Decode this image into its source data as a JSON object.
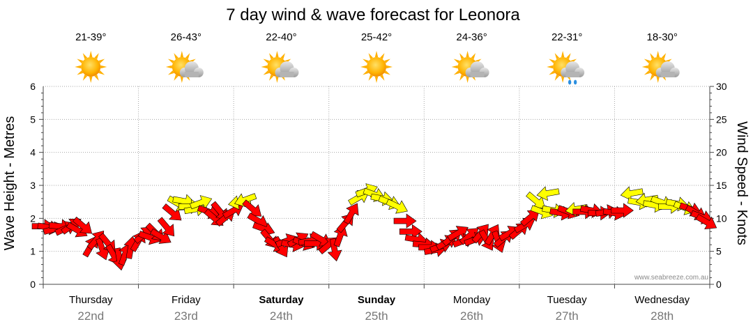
{
  "title": "7 day wind & wave forecast for Leonora",
  "credit": "www.seabreeze.com.au",
  "colors": {
    "strong_wind": "#ff0000",
    "moderate_wind": "#ffff00",
    "grid": "#a6a6a6"
  },
  "days": [
    {
      "day": "Thursday",
      "date": "22nd",
      "temp": "21-39°",
      "icon": "sunny-icon",
      "bold": false
    },
    {
      "day": "Friday",
      "date": "23rd",
      "temp": "26-43°",
      "icon": "partly-cloudy-icon",
      "bold": false
    },
    {
      "day": "Saturday",
      "date": "24th",
      "temp": "22-40°",
      "icon": "partly-cloudy-icon",
      "bold": true
    },
    {
      "day": "Sunday",
      "date": "25th",
      "temp": "25-42°",
      "icon": "sunny-icon",
      "bold": true
    },
    {
      "day": "Monday",
      "date": "26th",
      "temp": "24-36°",
      "icon": "partly-cloudy-icon",
      "bold": false
    },
    {
      "day": "Tuesday",
      "date": "27th",
      "temp": "22-31°",
      "icon": "shower-icon",
      "bold": false
    },
    {
      "day": "Wednesday",
      "date": "28th",
      "temp": "18-30°",
      "icon": "partly-cloudy-icon",
      "bold": false
    }
  ],
  "chart_data": {
    "type": "scatter",
    "title": "7 day wind & wave forecast for Leonora",
    "ylabel_left": "Wave Height - Metres",
    "ylabel_right": "Wind Speed - Knots",
    "ylim_left": [
      0,
      6
    ],
    "ylim_right": [
      0,
      30
    ],
    "yticks_left": [
      "0",
      "1",
      "2",
      "3",
      "4",
      "5",
      "6"
    ],
    "yticks_right": [
      "0",
      "5",
      "10",
      "15",
      "20",
      "25",
      "30"
    ],
    "x_categories": [
      "Thursday 22nd",
      "Friday 23rd",
      "Saturday 24th",
      "Sunday 25th",
      "Monday 26th",
      "Tuesday 27th",
      "Wednesday 28th"
    ],
    "grid": true,
    "series": [
      {
        "marker": "wind-arrow",
        "points": [
          {
            "day": 0,
            "frac": 0.0,
            "knots": 8.8,
            "rot": 0,
            "color": "red"
          },
          {
            "day": 0,
            "frac": 0.06,
            "knots": 8.6,
            "rot": 10,
            "color": "red"
          },
          {
            "day": 0,
            "frac": 0.12,
            "knots": 8.4,
            "rot": -15,
            "color": "red"
          },
          {
            "day": 0,
            "frac": 0.18,
            "knots": 8.8,
            "rot": 5,
            "color": "red"
          },
          {
            "day": 0,
            "frac": 0.24,
            "knots": 8.5,
            "rot": -25,
            "color": "red"
          },
          {
            "day": 0,
            "frac": 0.3,
            "knots": 8.9,
            "rot": -35,
            "color": "red"
          },
          {
            "day": 0,
            "frac": 0.36,
            "knots": 8.2,
            "rot": 30,
            "color": "red"
          },
          {
            "day": 0,
            "frac": 0.42,
            "knots": 8.8,
            "rot": 40,
            "color": "red"
          },
          {
            "day": 0,
            "frac": 0.5,
            "knots": 5.8,
            "rot": -60,
            "color": "red"
          },
          {
            "day": 0,
            "frac": 0.56,
            "knots": 6.8,
            "rot": -50,
            "color": "red"
          },
          {
            "day": 0,
            "frac": 0.62,
            "knots": 5.3,
            "rot": 70,
            "color": "red"
          },
          {
            "day": 0,
            "frac": 0.68,
            "knots": 6.2,
            "rot": 50,
            "color": "red"
          },
          {
            "day": 0,
            "frac": 0.74,
            "knots": 4.4,
            "rot": 60,
            "color": "red"
          },
          {
            "day": 0,
            "frac": 0.8,
            "knots": 3.8,
            "rot": 80,
            "color": "red"
          },
          {
            "day": 0,
            "frac": 0.86,
            "knots": 4.6,
            "rot": -70,
            "color": "red"
          },
          {
            "day": 0,
            "frac": 0.92,
            "knots": 5.6,
            "rot": -80,
            "color": "red"
          },
          {
            "day": 1,
            "frac": 0.0,
            "knots": 6.6,
            "rot": -60,
            "color": "red"
          },
          {
            "day": 1,
            "frac": 0.06,
            "knots": 7.6,
            "rot": -40,
            "color": "red"
          },
          {
            "day": 1,
            "frac": 0.12,
            "knots": 7.1,
            "rot": 20,
            "color": "red"
          },
          {
            "day": 1,
            "frac": 0.18,
            "knots": 7.8,
            "rot": 45,
            "color": "red"
          },
          {
            "day": 1,
            "frac": 0.24,
            "knots": 7.2,
            "rot": 30,
            "color": "red"
          },
          {
            "day": 1,
            "frac": 0.3,
            "knots": 8.6,
            "rot": 50,
            "color": "red"
          },
          {
            "day": 1,
            "frac": 0.36,
            "knots": 10.8,
            "rot": 40,
            "color": "red"
          },
          {
            "day": 1,
            "frac": 0.42,
            "knots": 12.2,
            "rot": 30,
            "color": "yellow"
          },
          {
            "day": 1,
            "frac": 0.48,
            "knots": 12.6,
            "rot": 10,
            "color": "yellow"
          },
          {
            "day": 1,
            "frac": 0.54,
            "knots": 11.8,
            "rot": 0,
            "color": "yellow"
          },
          {
            "day": 1,
            "frac": 0.6,
            "knots": 11.4,
            "rot": -10,
            "color": "yellow"
          },
          {
            "day": 1,
            "frac": 0.66,
            "knots": 12.4,
            "rot": -20,
            "color": "yellow"
          },
          {
            "day": 1,
            "frac": 0.74,
            "knots": 11.0,
            "rot": 20,
            "color": "red"
          },
          {
            "day": 1,
            "frac": 0.8,
            "knots": 10.0,
            "rot": 40,
            "color": "red"
          },
          {
            "day": 1,
            "frac": 0.86,
            "knots": 11.0,
            "rot": 50,
            "color": "red"
          },
          {
            "day": 1,
            "frac": 0.92,
            "knots": 10.2,
            "rot": -40,
            "color": "red"
          },
          {
            "day": 2,
            "frac": 0.0,
            "knots": 11.2,
            "rot": -30,
            "color": "red"
          },
          {
            "day": 2,
            "frac": 0.06,
            "knots": 12.4,
            "rot": 170,
            "color": "yellow"
          },
          {
            "day": 2,
            "frac": 0.12,
            "knots": 12.8,
            "rot": 160,
            "color": "yellow"
          },
          {
            "day": 2,
            "frac": 0.2,
            "knots": 11.4,
            "rot": 40,
            "color": "red"
          },
          {
            "day": 2,
            "frac": 0.26,
            "knots": 9.6,
            "rot": 30,
            "color": "red"
          },
          {
            "day": 2,
            "frac": 0.32,
            "knots": 8.4,
            "rot": 20,
            "color": "red"
          },
          {
            "day": 2,
            "frac": 0.38,
            "knots": 6.8,
            "rot": 50,
            "color": "red"
          },
          {
            "day": 2,
            "frac": 0.44,
            "knots": 6.0,
            "rot": 30,
            "color": "red"
          },
          {
            "day": 2,
            "frac": 0.5,
            "knots": 5.6,
            "rot": 60,
            "color": "red"
          },
          {
            "day": 2,
            "frac": 0.56,
            "knots": 6.6,
            "rot": -20,
            "color": "red"
          },
          {
            "day": 2,
            "frac": 0.62,
            "knots": 6.0,
            "rot": 10,
            "color": "red"
          },
          {
            "day": 2,
            "frac": 0.68,
            "knots": 6.8,
            "rot": -30,
            "color": "red"
          },
          {
            "day": 2,
            "frac": 0.74,
            "knots": 6.2,
            "rot": 20,
            "color": "red"
          },
          {
            "day": 2,
            "frac": 0.8,
            "knots": 6.6,
            "rot": -10,
            "color": "red"
          },
          {
            "day": 2,
            "frac": 0.86,
            "knots": 6.2,
            "rot": 0,
            "color": "red"
          },
          {
            "day": 2,
            "frac": 0.92,
            "knots": 6.8,
            "rot": 30,
            "color": "red"
          },
          {
            "day": 3,
            "frac": 0.0,
            "knots": 6.0,
            "rot": -40,
            "color": "red"
          },
          {
            "day": 3,
            "frac": 0.06,
            "knots": 5.2,
            "rot": 80,
            "color": "red"
          },
          {
            "day": 3,
            "frac": 0.12,
            "knots": 7.4,
            "rot": -70,
            "color": "red"
          },
          {
            "day": 3,
            "frac": 0.18,
            "knots": 9.4,
            "rot": -50,
            "color": "red"
          },
          {
            "day": 3,
            "frac": 0.24,
            "knots": 10.8,
            "rot": -60,
            "color": "red"
          },
          {
            "day": 3,
            "frac": 0.32,
            "knots": 13.2,
            "rot": -30,
            "color": "yellow"
          },
          {
            "day": 3,
            "frac": 0.4,
            "knots": 14.2,
            "rot": -20,
            "color": "yellow"
          },
          {
            "day": 3,
            "frac": 0.48,
            "knots": 13.6,
            "rot": 20,
            "color": "yellow"
          },
          {
            "day": 3,
            "frac": 0.56,
            "knots": 13.0,
            "rot": 10,
            "color": "yellow"
          },
          {
            "day": 3,
            "frac": 0.64,
            "knots": 12.4,
            "rot": 20,
            "color": "yellow"
          },
          {
            "day": 3,
            "frac": 0.72,
            "knots": 11.8,
            "rot": 25,
            "color": "yellow"
          },
          {
            "day": 3,
            "frac": 0.8,
            "knots": 9.6,
            "rot": 0,
            "color": "red"
          },
          {
            "day": 3,
            "frac": 0.86,
            "knots": 8.0,
            "rot": 0,
            "color": "red"
          },
          {
            "day": 3,
            "frac": 0.92,
            "knots": 6.8,
            "rot": 10,
            "color": "red"
          },
          {
            "day": 4,
            "frac": 0.0,
            "knots": 6.0,
            "rot": 5,
            "color": "red"
          },
          {
            "day": 4,
            "frac": 0.06,
            "knots": 5.6,
            "rot": 0,
            "color": "red"
          },
          {
            "day": 4,
            "frac": 0.12,
            "knots": 5.2,
            "rot": -10,
            "color": "red"
          },
          {
            "day": 4,
            "frac": 0.18,
            "knots": 5.8,
            "rot": -20,
            "color": "red"
          },
          {
            "day": 4,
            "frac": 0.24,
            "knots": 6.4,
            "rot": -30,
            "color": "red"
          },
          {
            "day": 4,
            "frac": 0.3,
            "knots": 7.2,
            "rot": -40,
            "color": "red"
          },
          {
            "day": 4,
            "frac": 0.36,
            "knots": 7.8,
            "rot": -30,
            "color": "red"
          },
          {
            "day": 4,
            "frac": 0.42,
            "knots": 6.6,
            "rot": -20,
            "color": "red"
          },
          {
            "day": 4,
            "frac": 0.48,
            "knots": 7.4,
            "rot": -40,
            "color": "red"
          },
          {
            "day": 4,
            "frac": 0.54,
            "knots": 6.8,
            "rot": -20,
            "color": "red"
          },
          {
            "day": 4,
            "frac": 0.6,
            "knots": 7.8,
            "rot": -50,
            "color": "red"
          },
          {
            "day": 4,
            "frac": 0.66,
            "knots": 6.6,
            "rot": 60,
            "color": "red"
          },
          {
            "day": 4,
            "frac": 0.72,
            "knots": 7.6,
            "rot": -60,
            "color": "red"
          },
          {
            "day": 4,
            "frac": 0.78,
            "knots": 6.4,
            "rot": 70,
            "color": "red"
          },
          {
            "day": 4,
            "frac": 0.84,
            "knots": 7.0,
            "rot": -40,
            "color": "red"
          },
          {
            "day": 4,
            "frac": 0.9,
            "knots": 7.8,
            "rot": -30,
            "color": "red"
          },
          {
            "day": 5,
            "frac": 0.0,
            "knots": 8.2,
            "rot": -40,
            "color": "red"
          },
          {
            "day": 5,
            "frac": 0.06,
            "knots": 9.0,
            "rot": -30,
            "color": "red"
          },
          {
            "day": 5,
            "frac": 0.12,
            "knots": 10.2,
            "rot": -40,
            "color": "red"
          },
          {
            "day": 5,
            "frac": 0.18,
            "knots": 12.6,
            "rot": 40,
            "color": "yellow"
          },
          {
            "day": 5,
            "frac": 0.24,
            "knots": 11.0,
            "rot": 20,
            "color": "yellow"
          },
          {
            "day": 5,
            "frac": 0.3,
            "knots": 13.8,
            "rot": 170,
            "color": "yellow"
          },
          {
            "day": 5,
            "frac": 0.36,
            "knots": 11.2,
            "rot": 10,
            "color": "yellow"
          },
          {
            "day": 5,
            "frac": 0.44,
            "knots": 10.8,
            "rot": 10,
            "color": "red"
          },
          {
            "day": 5,
            "frac": 0.52,
            "knots": 11.0,
            "rot": 20,
            "color": "red"
          },
          {
            "day": 5,
            "frac": 0.6,
            "knots": 11.4,
            "rot": 170,
            "color": "yellow"
          },
          {
            "day": 5,
            "frac": 0.68,
            "knots": 11.0,
            "rot": 0,
            "color": "red"
          },
          {
            "day": 5,
            "frac": 0.76,
            "knots": 11.2,
            "rot": 10,
            "color": "red"
          },
          {
            "day": 5,
            "frac": 0.84,
            "knots": 10.8,
            "rot": 0,
            "color": "red"
          },
          {
            "day": 5,
            "frac": 0.92,
            "knots": 11.0,
            "rot": -10,
            "color": "red"
          },
          {
            "day": 6,
            "frac": 0.0,
            "knots": 10.8,
            "rot": 10,
            "color": "red"
          },
          {
            "day": 6,
            "frac": 0.08,
            "knots": 11.2,
            "rot": 0,
            "color": "red"
          },
          {
            "day": 6,
            "frac": 0.18,
            "knots": 13.8,
            "rot": 170,
            "color": "yellow"
          },
          {
            "day": 6,
            "frac": 0.26,
            "knots": 12.4,
            "rot": 10,
            "color": "yellow"
          },
          {
            "day": 6,
            "frac": 0.34,
            "knots": 12.8,
            "rot": 170,
            "color": "yellow"
          },
          {
            "day": 6,
            "frac": 0.42,
            "knots": 12.0,
            "rot": 10,
            "color": "yellow"
          },
          {
            "day": 6,
            "frac": 0.5,
            "knots": 12.4,
            "rot": 20,
            "color": "yellow"
          },
          {
            "day": 6,
            "frac": 0.58,
            "knots": 11.8,
            "rot": 0,
            "color": "yellow"
          },
          {
            "day": 6,
            "frac": 0.66,
            "knots": 12.2,
            "rot": 10,
            "color": "yellow"
          },
          {
            "day": 6,
            "frac": 0.74,
            "knots": 11.6,
            "rot": 20,
            "color": "yellow"
          },
          {
            "day": 6,
            "frac": 0.8,
            "knots": 11.4,
            "rot": 20,
            "color": "red"
          },
          {
            "day": 6,
            "frac": 0.86,
            "knots": 10.8,
            "rot": 30,
            "color": "red"
          },
          {
            "day": 6,
            "frac": 0.92,
            "knots": 10.2,
            "rot": 20,
            "color": "red"
          },
          {
            "day": 6,
            "frac": 0.97,
            "knots": 9.4,
            "rot": 30,
            "color": "red"
          }
        ]
      }
    ]
  }
}
